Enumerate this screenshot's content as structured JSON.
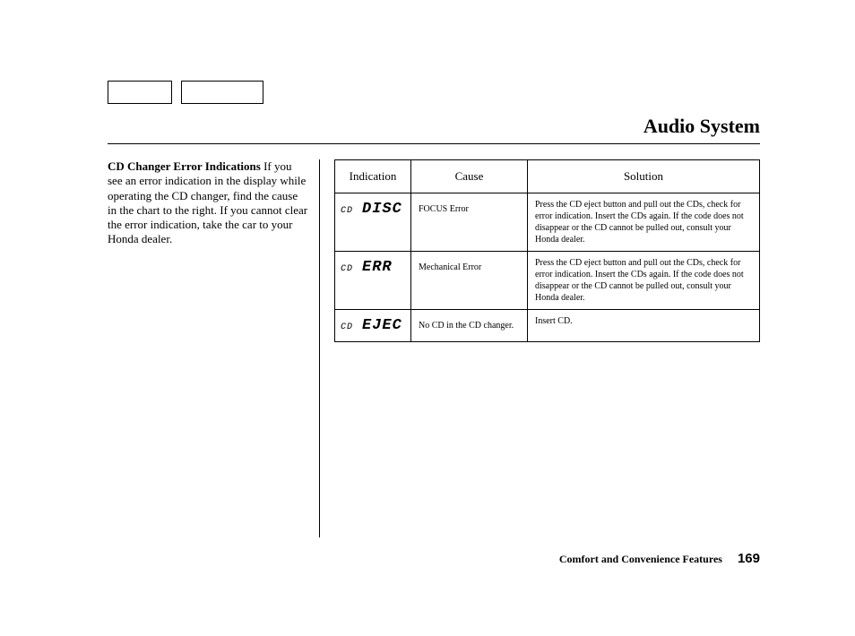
{
  "header": {
    "title": "Audio System"
  },
  "left": {
    "heading": "CD Changer Error Indications",
    "body": "If you see an error indication in the display while operating the CD changer, find the cause in the chart to the right. If you cannot clear the error indication, take the car to your Honda dealer."
  },
  "table": {
    "headers": {
      "c1": "Indication",
      "c2": "Cause",
      "c3": "Solution"
    },
    "rows": [
      {
        "ind_small": "CD",
        "ind_big": "DISC",
        "cause": "FOCUS Error",
        "solution": "Press the CD eject button and pull out the CDs, check for error indication. Insert the CDs again. If the code does not disappear or the CD cannot be pulled out, consult your Honda dealer."
      },
      {
        "ind_small": "CD",
        "ind_big": "ERR",
        "cause": "Mechanical Error",
        "solution": "Press the CD eject button and pull out the CDs, check for error indication. Insert the CDs again. If the code does not disappear or the CD cannot be pulled out, consult your Honda dealer."
      },
      {
        "ind_small": "CD",
        "ind_big": "EJEC",
        "cause": "No CD in the CD changer.",
        "solution": "Insert CD."
      }
    ]
  },
  "footer": {
    "section": "Comfort and Convenience Features",
    "page_number": "169"
  },
  "colors": {
    "text": "#000000",
    "bg": "#ffffff",
    "rule": "#000000"
  }
}
